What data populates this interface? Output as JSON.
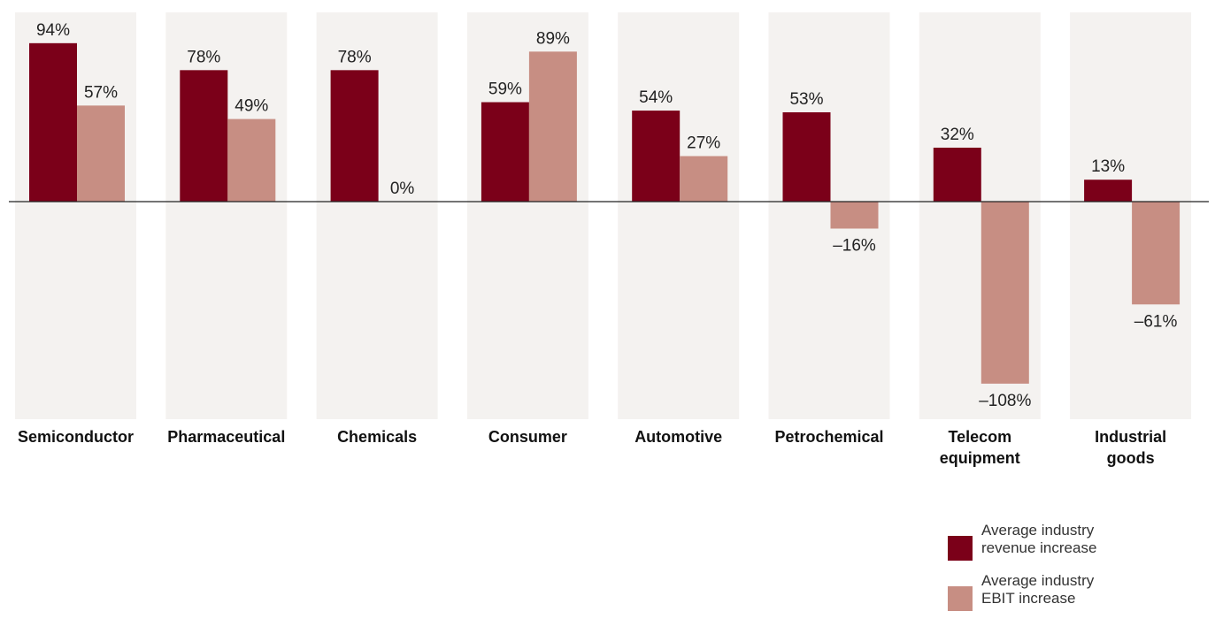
{
  "chart_data": {
    "type": "bar",
    "title": "",
    "xlabel": "",
    "ylabel": "",
    "ylim": [
      -120,
      100
    ],
    "grid": false,
    "legend_position": "bottom-right",
    "categories": [
      [
        "Semiconductor"
      ],
      [
        "Pharmaceutical"
      ],
      [
        "Chemicals"
      ],
      [
        "Consumer"
      ],
      [
        "Automotive"
      ],
      [
        "Petrochemical"
      ],
      [
        "Telecom",
        "equipment"
      ],
      [
        "Industrial",
        "goods"
      ]
    ],
    "series": [
      {
        "legend_lines": [
          "Average industry",
          "revenue increase"
        ],
        "color": "#7b0019",
        "values": [
          94,
          78,
          78,
          59,
          54,
          53,
          32,
          13
        ],
        "labels": [
          "94%",
          "78%",
          "78%",
          "59%",
          "54%",
          "53%",
          "32%",
          "13%"
        ]
      },
      {
        "legend_lines": [
          "Average industry",
          "EBIT increase"
        ],
        "color": "#c78e83",
        "values": [
          57,
          49,
          0,
          89,
          27,
          -16,
          -108,
          -61
        ],
        "labels": [
          "57%",
          "49%",
          "0%",
          "89%",
          "27%",
          "–16%",
          "–108%",
          "–61%"
        ]
      }
    ],
    "background_panel_color": "#f4f2f0",
    "axis_line_color": "#222222"
  }
}
